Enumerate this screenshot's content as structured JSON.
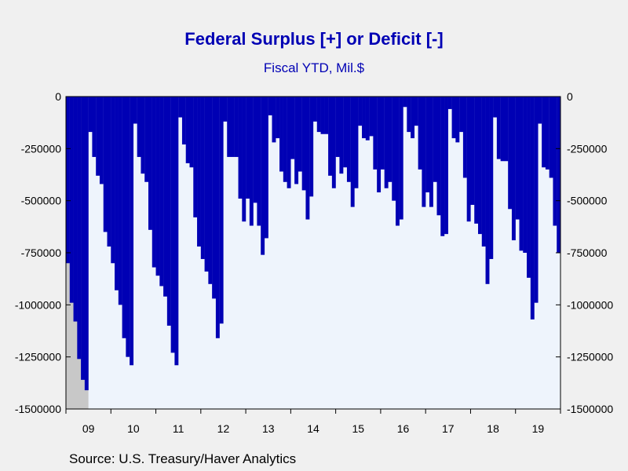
{
  "chart_data": {
    "type": "bar",
    "title": "Federal Surplus [+] or Deficit [-]",
    "subtitle": "Fiscal YTD, Mil.$",
    "source": "Source:  U.S. Treasury/Haver Analytics",
    "y_ticks": [
      "0",
      "-250000",
      "-500000",
      "-750000",
      "-1000000",
      "-1250000",
      "-1500000"
    ],
    "ylim": [
      -1500000,
      0
    ],
    "x_period": [
      "2009-01",
      "2019-12"
    ],
    "x_tick_labels": [
      "09",
      "10",
      "11",
      "12",
      "13",
      "14",
      "15",
      "16",
      "17",
      "18",
      "19"
    ],
    "recession_shading": [
      "2009-01",
      "2009-06"
    ],
    "colors": {
      "bars": "#0000b4",
      "plot_background": "#eef4fc",
      "recession": "#c8c8c8",
      "page_background": "#f0f0f0",
      "text_title": "#0000b4"
    },
    "grid": false,
    "series": [
      {
        "start": "2009-01",
        "frequency": "monthly",
        "values": [
          -800000,
          -990000,
          -1080000,
          -1260000,
          -1360000,
          -1410000,
          -170000,
          -290000,
          -380000,
          -420000,
          -650000,
          -720000,
          -800000,
          -930000,
          -1000000,
          -1160000,
          -1250000,
          -1290000,
          -130000,
          -290000,
          -370000,
          -410000,
          -640000,
          -820000,
          -860000,
          -910000,
          -960000,
          -1100000,
          -1230000,
          -1290000,
          -100000,
          -230000,
          -320000,
          -340000,
          -580000,
          -720000,
          -780000,
          -840000,
          -900000,
          -970000,
          -1160000,
          -1090000,
          -120000,
          -290000,
          -290000,
          -290000,
          -490000,
          -600000,
          -490000,
          -620000,
          -510000,
          -620000,
          -760000,
          -680000,
          -90000,
          -220000,
          -200000,
          -360000,
          -410000,
          -440000,
          -300000,
          -420000,
          -360000,
          -450000,
          -590000,
          -480000,
          -120000,
          -170000,
          -180000,
          -180000,
          -380000,
          -440000,
          -290000,
          -370000,
          -340000,
          -410000,
          -530000,
          -440000,
          -140000,
          -200000,
          -210000,
          -190000,
          -350000,
          -460000,
          -350000,
          -440000,
          -410000,
          -500000,
          -620000,
          -590000,
          -50000,
          -170000,
          -200000,
          -140000,
          -350000,
          -530000,
          -460000,
          -530000,
          -410000,
          -570000,
          -670000,
          -660000,
          -60000,
          -200000,
          -220000,
          -170000,
          -390000,
          -600000,
          -520000,
          -610000,
          -660000,
          -720000,
          -900000,
          -780000,
          -100000,
          -300000,
          -310000,
          -310000,
          -540000,
          -690000,
          -590000,
          -740000,
          -750000,
          -870000,
          -1070000,
          -990000,
          -130000,
          -340000,
          -350000,
          -390000,
          -620000,
          -750000
        ]
      }
    ]
  }
}
